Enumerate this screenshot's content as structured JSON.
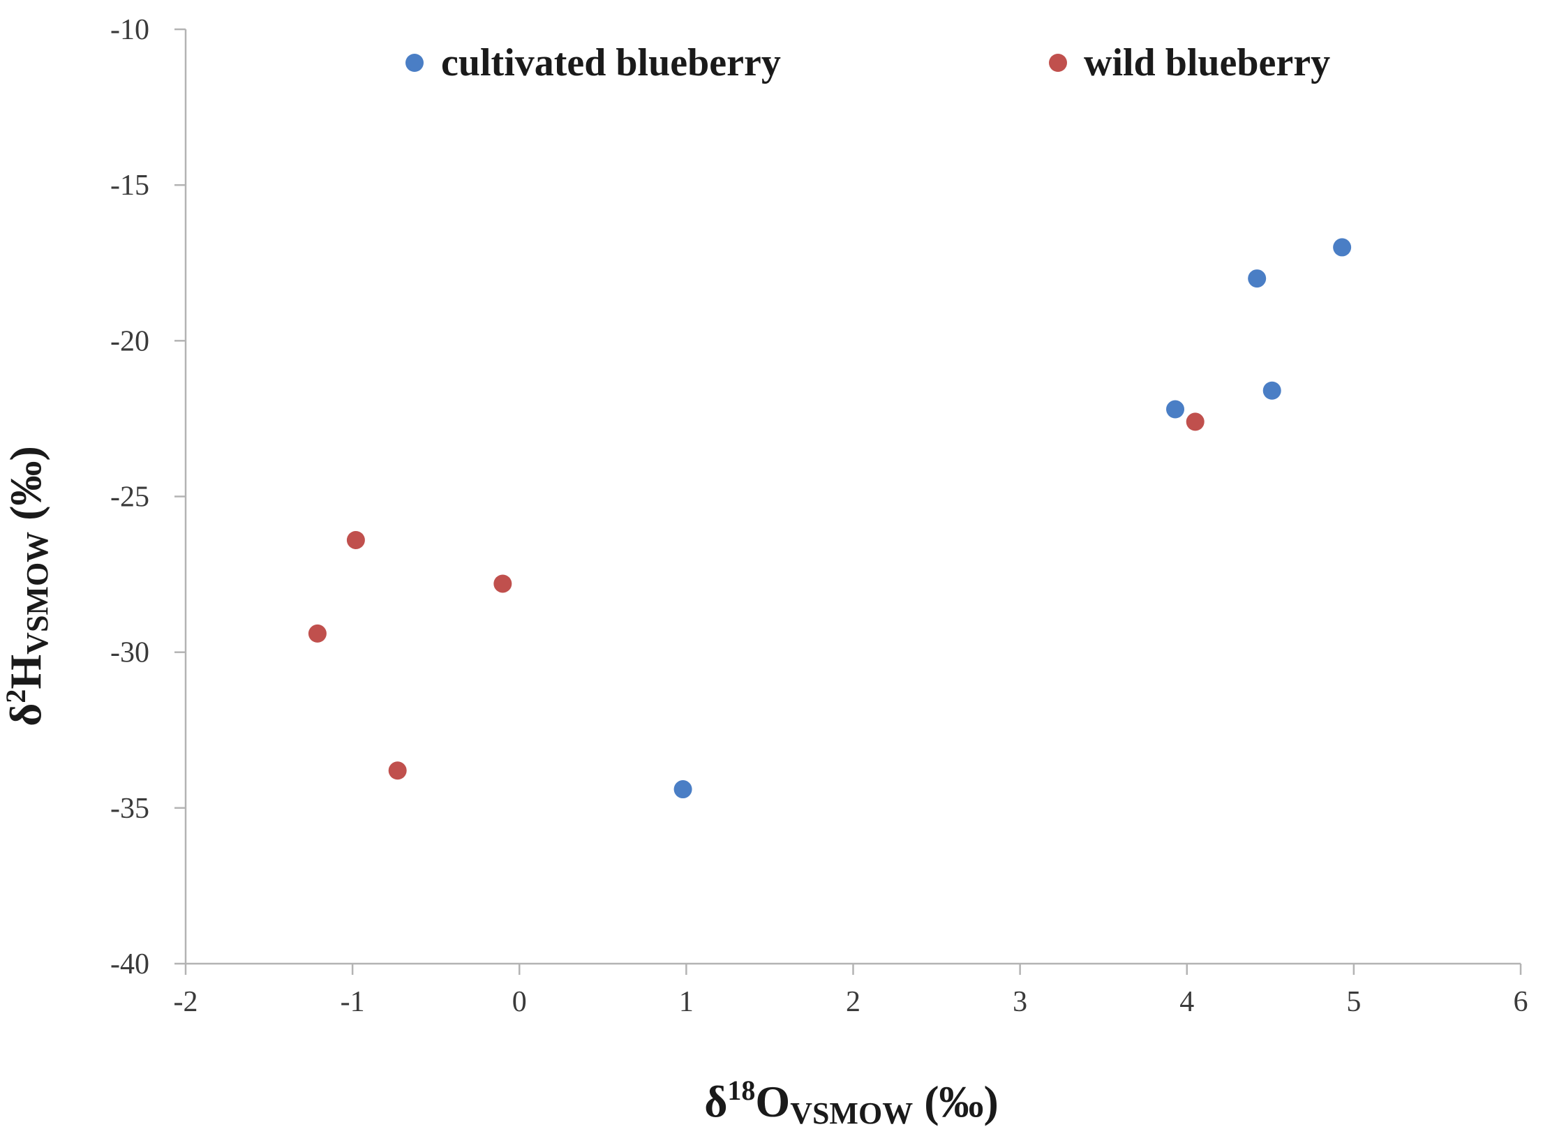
{
  "chart_data": {
    "type": "scatter",
    "title": "",
    "xlabel": {
      "base": "δ",
      "sup": "18",
      "element": "O",
      "sub": "VSMOW",
      "unit": " (‰)"
    },
    "ylabel": {
      "base": "δ",
      "sup": "2",
      "element": "H",
      "sub": "VSMOW",
      "unit": " (‰)"
    },
    "xlim": [
      -2,
      6
    ],
    "ylim": [
      -40,
      -10
    ],
    "xticks": [
      -2,
      -1,
      0,
      1,
      2,
      3,
      4,
      5,
      6
    ],
    "yticks": [
      -10,
      -15,
      -20,
      -25,
      -30,
      -35,
      -40
    ],
    "grid": false,
    "legend_position": "top",
    "series": [
      {
        "name": "cultivated blueberry",
        "color": "#4a7ec5",
        "points": [
          {
            "x": 0.98,
            "y": -34.4
          },
          {
            "x": 3.93,
            "y": -22.2
          },
          {
            "x": 4.42,
            "y": -18.0
          },
          {
            "x": 4.51,
            "y": -21.6
          },
          {
            "x": 4.93,
            "y": -17.0
          }
        ]
      },
      {
        "name": "wild blueberry",
        "color": "#c0504d",
        "points": [
          {
            "x": -1.21,
            "y": -29.4
          },
          {
            "x": -0.98,
            "y": -26.4
          },
          {
            "x": -0.73,
            "y": -33.8
          },
          {
            "x": -0.1,
            "y": -27.8
          },
          {
            "x": 4.05,
            "y": -22.6
          }
        ]
      }
    ]
  }
}
